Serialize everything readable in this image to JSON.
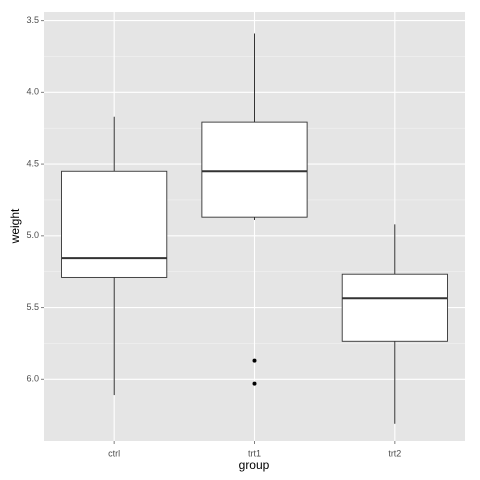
{
  "chart_data": {
    "type": "boxplot",
    "x_label": "group",
    "y_label": "weight",
    "categories": [
      "ctrl",
      "trt1",
      "trt2"
    ],
    "boxes": [
      {
        "min": 4.17,
        "q1": 4.55,
        "median": 5.155,
        "q3": 5.29,
        "max": 6.11,
        "outliers": []
      },
      {
        "min": 3.59,
        "q1": 4.2075,
        "median": 4.55,
        "q3": 4.87,
        "max": 4.89,
        "outliers": [
          5.87,
          6.03
        ]
      },
      {
        "min": 4.92,
        "q1": 5.2675,
        "median": 5.435,
        "q3": 5.735,
        "max": 6.31,
        "outliers": []
      }
    ],
    "ylim": [
      6.43,
      3.44
    ],
    "yticks": [
      3.5,
      {
        "value": 4,
        "label": "4.0"
      },
      4.5,
      {
        "value": 5,
        "label": "5.0"
      },
      5.5,
      {
        "value": 6,
        "label": "6.0"
      }
    ],
    "grid": true
  }
}
